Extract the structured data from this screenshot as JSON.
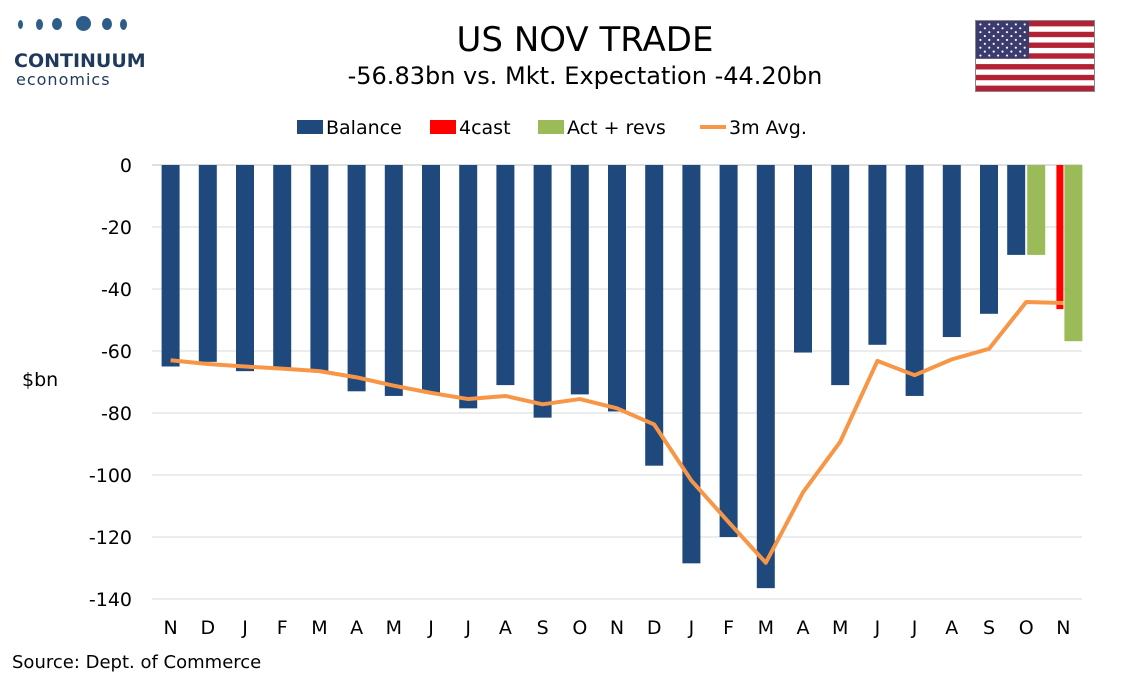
{
  "logo": {
    "name": "CONTINUUM",
    "sub": "economics"
  },
  "title": "US NOV TRADE",
  "subtitle": "-56.83bn vs. Mkt. Expectation -44.20bn",
  "flag_icon": "us-flag-icon",
  "source": "Source: Dept. of Commerce",
  "colors": {
    "balance": "#1f497d",
    "forecast": "#ff0000",
    "actual_revs": "#9bbb59",
    "avg": "#f79646",
    "grid": "#d9d9d9"
  },
  "chart_data": {
    "type": "bar",
    "title": "US NOV TRADE",
    "ylabel": "$bn",
    "ylim": [
      -140,
      0
    ],
    "yticks": [
      0,
      -20,
      -40,
      -60,
      -80,
      -100,
      -120,
      -140
    ],
    "categories": [
      "N",
      "D",
      "J",
      "F",
      "M",
      "A",
      "M",
      "J",
      "J",
      "A",
      "S",
      "O",
      "N",
      "D",
      "J",
      "F",
      "M",
      "A",
      "M",
      "J",
      "J",
      "A",
      "S",
      "O",
      "N"
    ],
    "legend": [
      "Balance",
      "4cast",
      "Act + revs",
      "3m Avg."
    ],
    "legend_position": "top",
    "series": [
      {
        "name": "Balance",
        "kind": "bar",
        "values": [
          -65,
          -63.5,
          -66.5,
          -65.5,
          -66.5,
          -73,
          -74.5,
          -73.5,
          -78.5,
          -71,
          -81.5,
          -74,
          -79.5,
          -97,
          -128.5,
          -120,
          -136.5,
          -60.5,
          -71,
          -58,
          -74.5,
          -55.5,
          -48,
          -29,
          null
        ]
      },
      {
        "name": "4cast",
        "kind": "bar",
        "values": [
          null,
          null,
          null,
          null,
          null,
          null,
          null,
          null,
          null,
          null,
          null,
          null,
          null,
          null,
          null,
          null,
          null,
          null,
          null,
          null,
          null,
          null,
          null,
          null,
          -46.5
        ]
      },
      {
        "name": "Act + revs",
        "kind": "bar",
        "values": [
          null,
          null,
          null,
          null,
          null,
          null,
          null,
          null,
          null,
          null,
          null,
          null,
          null,
          null,
          null,
          null,
          null,
          null,
          null,
          null,
          null,
          null,
          null,
          -29,
          -56.83
        ]
      },
      {
        "name": "3m Avg.",
        "kind": "line",
        "values": [
          -63,
          -64.2,
          -65,
          -65.7,
          -66.5,
          -68.5,
          -71.2,
          -73.5,
          -75.5,
          -74.5,
          -77.2,
          -75.5,
          -78.5,
          -83.7,
          -101.8,
          -115.2,
          -128.3,
          -105.6,
          -89.3,
          -63.2,
          -67.8,
          -62.7,
          -59.3,
          -44.2,
          -44.5
        ]
      }
    ]
  }
}
